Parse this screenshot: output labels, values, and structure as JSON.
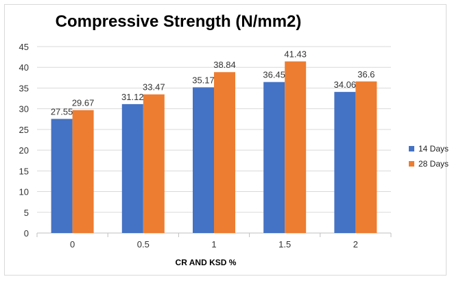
{
  "chart_data": {
    "type": "bar",
    "title": "Compressive Strength (N/mm2)",
    "xlabel": "CR AND KSD %",
    "ylabel": "",
    "ylim": [
      0,
      45
    ],
    "ytick_step": 5,
    "categories": [
      "0",
      "0.5",
      "1",
      "1.5",
      "2"
    ],
    "series": [
      {
        "name": "14 Days",
        "color": "#4472c4",
        "values": [
          27.55,
          31.12,
          35.17,
          36.45,
          34.06
        ],
        "labels": [
          "27.55",
          "31.12",
          "35.17",
          "36.45",
          "34.06"
        ]
      },
      {
        "name": "28 Days",
        "color": "#ed7d31",
        "values": [
          29.67,
          33.47,
          38.84,
          41.43,
          36.6
        ],
        "labels": [
          "29.67",
          "33.47",
          "38.84",
          "41.43",
          "36.6"
        ]
      }
    ],
    "grid": true,
    "legend": "right"
  }
}
